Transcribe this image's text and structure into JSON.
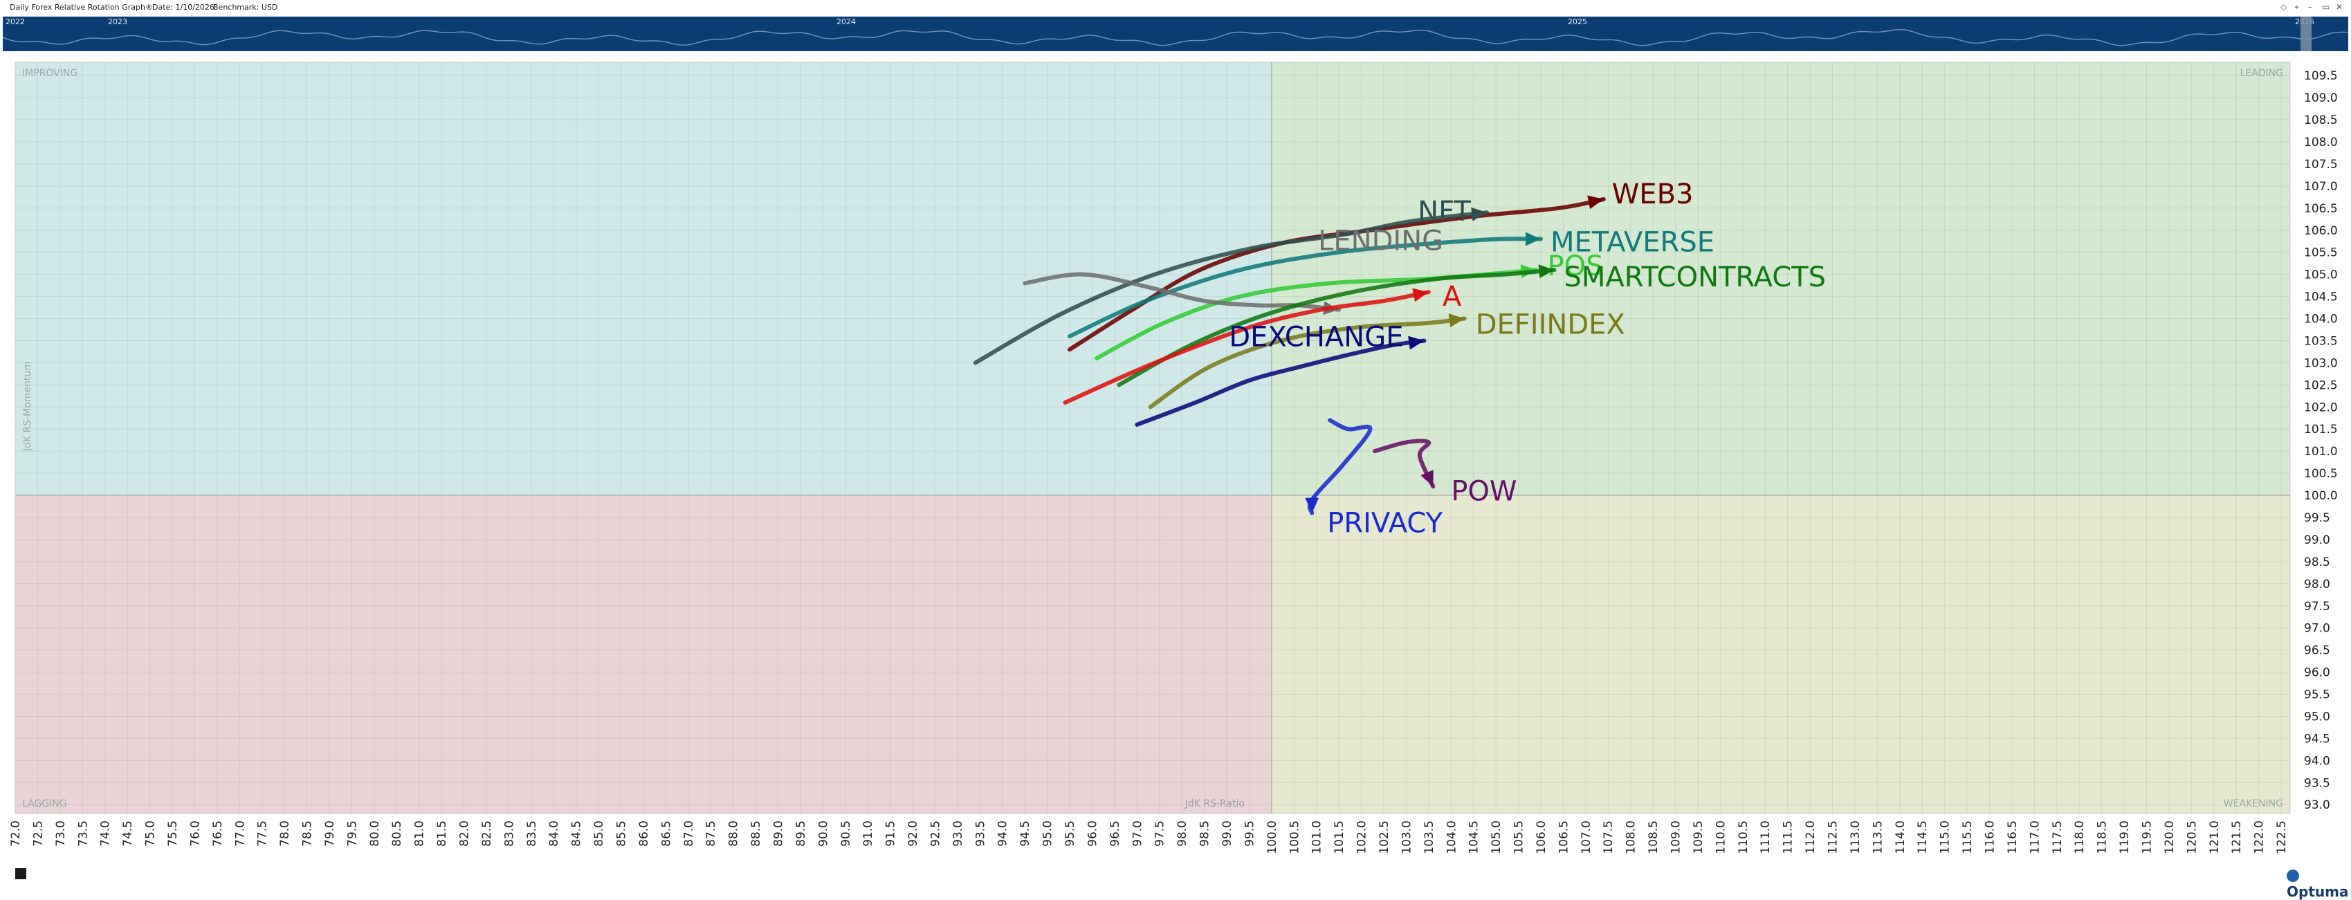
{
  "header": {
    "title": "Daily Forex Relative Rotation Graph®",
    "date": "Date: 1/10/2026",
    "benchmark": "Benchmark:  USD"
  },
  "timeline": {
    "years": [
      "2022",
      "2023",
      "2024",
      "2025",
      "2026"
    ]
  },
  "chart_data": {
    "type": "line",
    "xlabel": "JdK RS-Ratio",
    "ylabel": "JdK RS-Momentum",
    "xlim": [
      72.0,
      122.7
    ],
    "ylim": [
      92.8,
      109.8
    ],
    "center": [
      100,
      100
    ],
    "xticks": [
      "72.0",
      "72.5",
      "73.0",
      "73.5",
      "74.0",
      "74.5",
      "75.0",
      "75.5",
      "76.0",
      "76.5",
      "77.0",
      "77.5",
      "78.0",
      "78.5",
      "79.0",
      "79.5",
      "80.0",
      "80.5",
      "81.0",
      "81.5",
      "82.0",
      "82.5",
      "83.0",
      "83.5",
      "84.0",
      "84.5",
      "85.0",
      "85.5",
      "86.0",
      "86.5",
      "87.0",
      "87.5",
      "88.0",
      "88.5",
      "89.0",
      "89.5",
      "90.0",
      "90.5",
      "91.0",
      "91.5",
      "92.0",
      "92.5",
      "93.0",
      "93.5",
      "94.0",
      "94.5",
      "95.0",
      "95.5",
      "96.0",
      "96.5",
      "97.0",
      "97.5",
      "98.0",
      "98.5",
      "99.0",
      "99.5",
      "100.0",
      "100.5",
      "101.0",
      "101.5",
      "102.0",
      "102.5",
      "103.0",
      "103.5",
      "104.0",
      "104.5",
      "105.0",
      "105.5",
      "106.0",
      "106.5",
      "107.0",
      "107.5",
      "108.0",
      "108.5",
      "109.0",
      "109.5",
      "110.0",
      "110.5",
      "111.0",
      "111.5",
      "112.0",
      "112.5",
      "113.0",
      "113.5",
      "114.0",
      "114.5",
      "115.0",
      "115.5",
      "116.0",
      "116.5",
      "117.0",
      "117.5",
      "118.0",
      "118.5",
      "119.0",
      "119.5",
      "120.0",
      "120.5",
      "121.0",
      "121.5",
      "122.0",
      "122.5"
    ],
    "yticks": [
      "93.0",
      "93.5",
      "94.0",
      "94.5",
      "95.0",
      "95.5",
      "96.0",
      "96.5",
      "97.0",
      "97.5",
      "98.0",
      "98.5",
      "99.0",
      "99.5",
      "100.0",
      "100.5",
      "101.0",
      "101.5",
      "102.0",
      "102.5",
      "103.0",
      "103.5",
      "104.0",
      "104.5",
      "105.0",
      "105.5",
      "106.0",
      "106.5",
      "107.0",
      "107.5",
      "108.0",
      "108.5",
      "109.0",
      "109.5"
    ],
    "quadrants": [
      {
        "name": "IMPROVING",
        "color": "#d0e8e8"
      },
      {
        "name": "LEADING",
        "color": "#d4e8d2"
      },
      {
        "name": "LAGGING",
        "color": "#e8d4d6"
      },
      {
        "name": "WEAKENING",
        "color": "#e6e8d0"
      }
    ],
    "series": [
      {
        "name": "WEB3",
        "color": "#6b0000",
        "x": [
          95.5,
          96.9,
          98.4,
          100.2,
          102.2,
          104.4,
          106.4,
          107.4
        ],
        "y": [
          103.3,
          104.2,
          105.1,
          105.7,
          106.0,
          106.3,
          106.5,
          106.7
        ]
      },
      {
        "name": "NFT",
        "color": "#2f4f4f",
        "x": [
          93.4,
          95.3,
          97.4,
          99.6,
          101.6,
          103.1,
          104.8
        ],
        "y": [
          103.0,
          104.1,
          105.0,
          105.6,
          105.9,
          106.2,
          106.4
        ]
      },
      {
        "name": "POS",
        "color": "#33cc33",
        "x": [
          96.1,
          97.6,
          99.3,
          101.3,
          103.5,
          105.9
        ],
        "y": [
          103.1,
          103.9,
          104.5,
          104.8,
          104.9,
          105.1
        ]
      },
      {
        "name": "METAVERSE",
        "color": "#117a7a",
        "x": [
          95.5,
          97.2,
          99.3,
          101.5,
          103.6,
          105.1,
          106.0
        ],
        "y": [
          103.6,
          104.4,
          105.1,
          105.5,
          105.7,
          105.8,
          105.8
        ]
      },
      {
        "name": "LENDING",
        "color": "#6e6e6e",
        "x": [
          94.5,
          95.8,
          97.3,
          98.5,
          99.7,
          100.6,
          101.5
        ],
        "y": [
          104.8,
          105.0,
          104.7,
          104.4,
          104.3,
          104.3,
          104.2
        ]
      },
      {
        "name": "SMARTCONTRACTS",
        "color": "#117711",
        "x": [
          96.6,
          98.2,
          99.9,
          101.8,
          103.7,
          105.2,
          106.3
        ],
        "y": [
          102.5,
          103.4,
          104.1,
          104.6,
          104.9,
          105.0,
          105.1
        ]
      },
      {
        "name": "A",
        "color": "#dd1111",
        "x": [
          95.4,
          97.4,
          99.5,
          101.1,
          102.5,
          103.5
        ],
        "y": [
          102.1,
          103.0,
          103.8,
          104.2,
          104.4,
          104.6
        ]
      },
      {
        "name": "DEFIINDEX",
        "color": "#7a7a1a",
        "x": [
          97.3,
          98.6,
          100.2,
          101.9,
          103.5,
          104.3
        ],
        "y": [
          102.0,
          102.9,
          103.5,
          103.8,
          103.9,
          104.0
        ]
      },
      {
        "name": "DEXCHANGE",
        "color": "#0a0a7a",
        "x": [
          97.0,
          98.3,
          99.5,
          100.6,
          101.8,
          102.7,
          103.4
        ],
        "y": [
          101.6,
          102.1,
          102.6,
          102.9,
          103.2,
          103.4,
          103.5
        ]
      },
      {
        "name": "POW",
        "color": "#661166",
        "x": [
          102.3,
          103.0,
          103.5,
          103.3,
          103.6
        ],
        "y": [
          101.0,
          101.2,
          101.2,
          100.9,
          100.2
        ]
      },
      {
        "name": "PRIVACY",
        "color": "#1a2acc",
        "x": [
          101.3,
          101.7,
          102.2,
          101.6,
          100.9,
          100.9
        ],
        "y": [
          101.7,
          101.5,
          101.5,
          100.7,
          99.9,
          99.6
        ]
      }
    ]
  }
}
